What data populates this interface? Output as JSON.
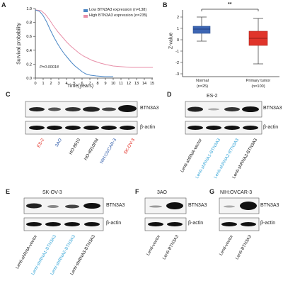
{
  "colors": {
    "low": "#4a86c5",
    "high": "#e88fa8",
    "normal_box": "#3d66b3",
    "tumor_box": "#e0342a",
    "red_label": "#e1261c",
    "blue_label": "#2b58a8",
    "cyan_label": "#3aa7d8",
    "black_label": "#111111"
  },
  "panelA": {
    "letter": "A",
    "legend": {
      "low": "Low BTN3A3 expression (n=138)",
      "high": "High BTN3A3 expression (n=235)"
    },
    "ylabel": "Survival probability",
    "xlabel": "Time(years)",
    "pvalue": "P=0.00018",
    "yticks": [
      "0.0",
      "0.2",
      "0.4",
      "0.6",
      "0.8",
      "1.0"
    ],
    "xticks": [
      "0",
      "1",
      "2",
      "3",
      "4",
      "5",
      "6",
      "7",
      "8",
      "9",
      "10",
      "11",
      "12",
      "13",
      "14",
      "15"
    ]
  },
  "panelB": {
    "letter": "B",
    "ylabel": "Z-value",
    "sig": "**",
    "yticks": [
      "2",
      "1",
      "0",
      "-1",
      "-2",
      "-3"
    ],
    "groups": [
      {
        "name": "Normal",
        "n": "(n=25)"
      },
      {
        "name": "Primary tumor",
        "n": "(n=100)"
      }
    ]
  },
  "panelC": {
    "letter": "C",
    "bands": [
      "BTN3A3",
      "β-actin"
    ],
    "lanes": [
      {
        "label": "ES-2",
        "color": "red"
      },
      {
        "label": "3AO",
        "color": "blue"
      },
      {
        "label": "HO-8910",
        "color": "black"
      },
      {
        "label": "HO-8910PM",
        "color": "black"
      },
      {
        "label": "NIH:OVCAR-3",
        "color": "blue"
      },
      {
        "label": "SK-OV-3",
        "color": "red"
      }
    ]
  },
  "panelD": {
    "letter": "D",
    "title": "ES-2",
    "bands": [
      "BTN3A3",
      "β-actin"
    ],
    "lanes": [
      {
        "label": "Lenti-shRNA-vector",
        "color": "black"
      },
      {
        "label": "Lenti-shRNA1-BTN3A3",
        "color": "cyan"
      },
      {
        "label": "Lenti-shRNA2-BTN3A3",
        "color": "cyan"
      },
      {
        "label": "Lenti-shRNA3-BTN3A3",
        "color": "black"
      }
    ]
  },
  "panelE": {
    "letter": "E",
    "title": "SK-OV-3",
    "bands": [
      "BTN3A3",
      "β-actin"
    ],
    "lanes": [
      {
        "label": "Lenti-shRNA-vector",
        "color": "black"
      },
      {
        "label": "Lenti-shRNA1-BTN3A3",
        "color": "cyan"
      },
      {
        "label": "Lenti-shRNA2-BTN3A3",
        "color": "cyan"
      },
      {
        "label": "Lenti-shRNA3-BTN3A3",
        "color": "black"
      }
    ]
  },
  "panelF": {
    "letter": "F",
    "title": "3AO",
    "bands": [
      "BTN3A3",
      "β-actin"
    ],
    "lanes": [
      {
        "label": "Lenti-vector"
      },
      {
        "label": "Lenti-BTN3A3"
      }
    ]
  },
  "panelG": {
    "letter": "G",
    "title": "NIH:OVCAR-3",
    "bands": [
      "BTN3A3",
      "β-actin"
    ],
    "lanes": [
      {
        "label": "Lenti-vector"
      },
      {
        "label": "Lenti-BTN3A3"
      }
    ]
  }
}
